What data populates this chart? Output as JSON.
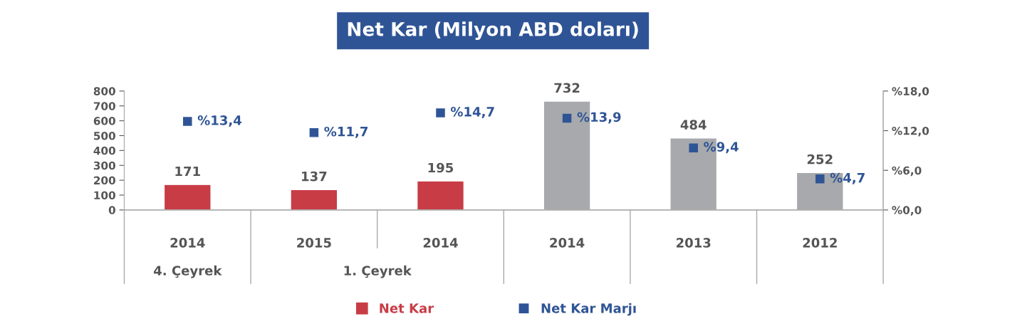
{
  "chart_data": {
    "type": "bar",
    "title": "Net Kar (Milyon ABD doları)",
    "categories": [
      "2014",
      "2015",
      "2014",
      "2014",
      "2013",
      "2012"
    ],
    "series": [
      {
        "name": "Net Kar",
        "color": "#c83c46",
        "colors": [
          "#c83c46",
          "#c83c46",
          "#c83c46",
          "#a7a9ac",
          "#a7a9ac",
          "#a7a9ac"
        ],
        "values": [
          171,
          137,
          195,
          732,
          484,
          252
        ]
      },
      {
        "name": "Net Kar Marjı",
        "type": "scatter",
        "axis": "y2",
        "color": "#2f5496",
        "values": [
          13.4,
          11.7,
          14.7,
          13.9,
          9.4,
          4.7
        ],
        "value_labels": [
          "%13,4",
          "%11,7",
          "%14,7",
          "%13,9",
          "%9,4",
          "%4,7"
        ]
      }
    ],
    "data_labels": true,
    "annotations": [
      "4. Çeyrek",
      "1. Çeyrek"
    ],
    "ylim": [
      0,
      800
    ],
    "yticks": [
      0,
      100,
      200,
      300,
      400,
      500,
      600,
      700,
      800
    ],
    "y2lim": [
      0,
      18
    ],
    "y2ticks": [
      {
        "value": 0,
        "label": "%0,0"
      },
      {
        "value": 6,
        "label": "%6,0"
      },
      {
        "value": 12,
        "label": "%12,0"
      },
      {
        "value": 18,
        "label": "%18,0"
      }
    ],
    "marker": "square",
    "legend": "bottom",
    "grid": false
  }
}
